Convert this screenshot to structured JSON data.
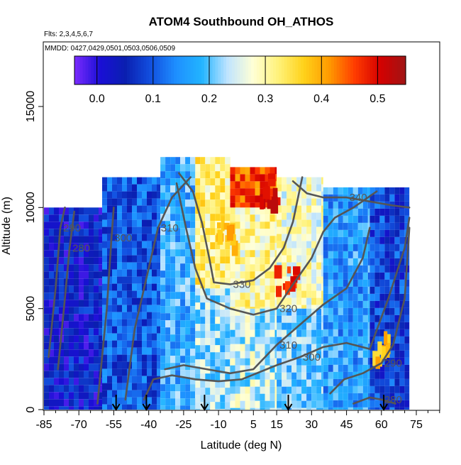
{
  "chart_data": {
    "type": "heatmap",
    "title": "ATOM4 Southbound OH_ATHOS",
    "subtitle_flights": "Flts: 2,3,4,5,6,7",
    "subtitle_dates": "MMDD: 0427,0429,0501,0503,0506,0509",
    "xlabel": "Latitude (deg N)",
    "ylabel": "Altitude (m)",
    "xlim": [
      -85,
      85
    ],
    "ylim": [
      0,
      17500
    ],
    "x_ticks": [
      -85,
      -70,
      -55,
      -40,
      -25,
      -10,
      5,
      15,
      30,
      45,
      60,
      75
    ],
    "y_ticks": [
      0,
      5000,
      10000,
      15000
    ],
    "colorbar": {
      "range": [
        -0.04,
        0.55
      ],
      "ticks": [
        0.0,
        0.1,
        0.2,
        0.3,
        0.4,
        0.5
      ],
      "tick_labels": [
        "0.0",
        "0.1",
        "0.2",
        "0.3",
        "0.4",
        "0.5"
      ],
      "colors": [
        "#7b2cff",
        "#1a0fd6",
        "#0a1fb0",
        "#1250e0",
        "#1e90ff",
        "#22b4ff",
        "#bfe4ff",
        "#ffffd6",
        "#fff27a",
        "#ffd21a",
        "#ff9a00",
        "#ff3c00",
        "#d40000",
        "#a01515"
      ]
    },
    "field_bands": [
      {
        "lat": [
          -85,
          -60
        ],
        "alt": [
          0,
          10000
        ],
        "value": 0.04
      },
      {
        "lat": [
          -60,
          -35
        ],
        "alt": [
          0,
          11500
        ],
        "value": 0.1
      },
      {
        "lat": [
          -35,
          -20
        ],
        "alt": [
          0,
          12500
        ],
        "value": 0.18
      },
      {
        "lat": [
          -20,
          -5
        ],
        "alt": [
          0,
          6000
        ],
        "value": 0.22
      },
      {
        "lat": [
          -20,
          -5
        ],
        "alt": [
          6000,
          12500
        ],
        "value": 0.32
      },
      {
        "lat": [
          -5,
          15
        ],
        "alt": [
          0,
          5000
        ],
        "value": 0.24
      },
      {
        "lat": [
          -5,
          15
        ],
        "alt": [
          5000,
          10000
        ],
        "value": 0.3
      },
      {
        "lat": [
          -5,
          15
        ],
        "alt": [
          10000,
          12000
        ],
        "value": 0.45
      },
      {
        "lat": [
          15,
          35
        ],
        "alt": [
          0,
          5000
        ],
        "value": 0.2
      },
      {
        "lat": [
          15,
          35
        ],
        "alt": [
          5000,
          11500
        ],
        "value": 0.28
      },
      {
        "lat": [
          35,
          55
        ],
        "alt": [
          0,
          11000
        ],
        "value": 0.16
      },
      {
        "lat": [
          55,
          72
        ],
        "alt": [
          0,
          11000
        ],
        "value": 0.08
      }
    ],
    "hot_spots": [
      {
        "lat": 12,
        "alt": 11000,
        "value": 0.5
      },
      {
        "lat": 18,
        "alt": 6500,
        "value": 0.48
      },
      {
        "lat": -8,
        "alt": 9000,
        "value": 0.4
      },
      {
        "lat": 60,
        "alt": 3200,
        "value": 0.38
      }
    ],
    "contours": [
      {
        "label": "280",
        "points": [
          [
            -79,
            2000
          ],
          [
            -76,
            5500
          ],
          [
            -74,
            8000
          ],
          [
            -72,
            9800
          ]
        ]
      },
      {
        "label": "280",
        "points": [
          [
            48,
            300
          ],
          [
            55,
            600
          ],
          [
            60,
            500
          ],
          [
            66,
            300
          ]
        ]
      },
      {
        "label": "290",
        "points": [
          [
            -83,
            2600
          ],
          [
            -80,
            6000
          ],
          [
            -78,
            9000
          ],
          [
            -76,
            10000
          ]
        ]
      },
      {
        "label": "290",
        "points": [
          [
            38,
            800
          ],
          [
            44,
            1500
          ],
          [
            52,
            1800
          ],
          [
            60,
            2300
          ],
          [
            65,
            3200
          ],
          [
            70,
            5500
          ],
          [
            72,
            9000
          ]
        ]
      },
      {
        "label": "300",
        "points": [
          [
            -62,
            300
          ],
          [
            -58,
            5000
          ],
          [
            -56,
            8500
          ],
          [
            -55,
            10000
          ]
        ]
      },
      {
        "label": "300",
        "points": [
          [
            -42,
            500
          ],
          [
            -38,
            1500
          ],
          [
            -30,
            1700
          ],
          [
            -20,
            1500
          ],
          [
            -10,
            1400
          ],
          [
            0,
            1500
          ],
          [
            15,
            2200
          ],
          [
            25,
            2600
          ],
          [
            35,
            3100
          ],
          [
            45,
            3300
          ],
          [
            55,
            3000
          ],
          [
            63,
            5500
          ],
          [
            70,
            8000
          ],
          [
            72,
            9500
          ]
        ]
      },
      {
        "label": "310",
        "points": [
          [
            -50,
            500
          ],
          [
            -46,
            4000
          ],
          [
            -40,
            7000
          ],
          [
            -36,
            9000
          ],
          [
            -30,
            10500
          ],
          [
            -22,
            11500
          ]
        ]
      },
      {
        "label": "310",
        "points": [
          [
            -33,
            2000
          ],
          [
            -25,
            2200
          ],
          [
            -15,
            2000
          ],
          [
            -5,
            1800
          ],
          [
            5,
            2000
          ],
          [
            15,
            3200
          ],
          [
            25,
            4200
          ],
          [
            35,
            5200
          ],
          [
            45,
            6000
          ],
          [
            52,
            7500
          ],
          [
            55,
            9000
          ]
        ]
      },
      {
        "label": "320",
        "points": [
          [
            -28,
            11200
          ],
          [
            -24,
            9000
          ],
          [
            -20,
            7000
          ],
          [
            -15,
            5500
          ],
          [
            -5,
            5000
          ],
          [
            5,
            4700
          ],
          [
            15,
            5000
          ],
          [
            22,
            6200
          ],
          [
            30,
            7500
          ],
          [
            35,
            8800
          ],
          [
            40,
            9500
          ],
          [
            48,
            10000
          ],
          [
            58,
            10800
          ]
        ]
      },
      {
        "label": "330",
        "points": [
          [
            -27,
            11700
          ],
          [
            -21,
            10800
          ],
          [
            -17,
            9200
          ],
          [
            -14,
            7500
          ],
          [
            -12,
            6300
          ],
          [
            -5,
            6200
          ],
          [
            5,
            6400
          ],
          [
            12,
            7000
          ],
          [
            18,
            8000
          ],
          [
            22,
            9300
          ],
          [
            26,
            11500
          ]
        ]
      },
      {
        "label": "340",
        "points": [
          [
            22,
            11300
          ],
          [
            28,
            10700
          ],
          [
            35,
            10500
          ],
          [
            45,
            10500
          ],
          [
            55,
            10300
          ],
          [
            65,
            10100
          ],
          [
            72,
            10000
          ]
        ]
      }
    ],
    "flight_arrows_lat": [
      -54,
      -41,
      -16,
      20,
      61
    ]
  }
}
